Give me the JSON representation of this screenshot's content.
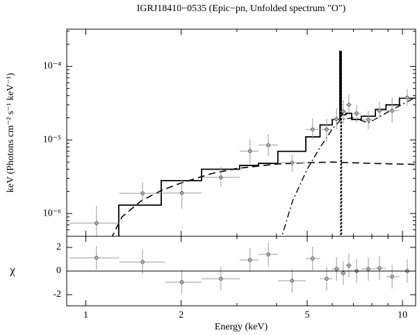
{
  "chart_data": [
    {
      "type": "scatter",
      "title": "IGRJ18410−0535 (Epic−pn, Unfolded spectrum \"O\")",
      "ylabel": "keV (Photons cm⁻² s⁻¹ keV⁻¹)",
      "xscale": "log",
      "yscale": "log",
      "xlim": [
        0.87,
        11
      ],
      "ylim": [
        4.9e-07,
        0.00032
      ],
      "xticks": [
        1,
        2,
        5,
        10
      ],
      "xminorticks": [
        3,
        4,
        6,
        7,
        8,
        9
      ],
      "yticks": [
        {
          "value": 1e-06,
          "label": "10⁻⁶"
        },
        {
          "value": 1e-05,
          "label": "10⁻⁵"
        },
        {
          "value": 0.0001,
          "label": "10⁻⁴"
        }
      ],
      "yminorticks": [
        6e-07,
        7e-07,
        8e-07,
        9e-07,
        2e-06,
        3e-06,
        4e-06,
        5e-06,
        6e-06,
        7e-06,
        8e-06,
        9e-06,
        2e-05,
        3e-05,
        4e-05,
        5e-05,
        6e-05,
        7e-05,
        8e-05,
        9e-05,
        0.0002,
        0.0003
      ],
      "point_color": "#aaaaaa",
      "error_color": "#999999",
      "line_color": "#000000",
      "points": {
        "x": [
          1.08,
          1.51,
          2.01,
          2.67,
          3.3,
          3.77,
          4.48,
          5.2,
          5.76,
          6.19,
          6.5,
          6.77,
          7.16,
          7.8,
          8.46,
          9.27,
          10.35
        ],
        "y": [
          7.4e-07,
          1.88e-06,
          1.9e-06,
          3.1e-06,
          7.06e-06,
          8.5e-06,
          4.9e-06,
          1.39e-05,
          1.39e-05,
          1.92e-05,
          2.44e-05,
          3e-05,
          2.3e-05,
          1.88e-05,
          2.5e-05,
          2.5e-05,
          3.76e-05
        ],
        "x_lo": [
          0.886,
          1.275,
          1.78,
          2.32,
          3.06,
          3.51,
          4.04,
          4.95,
          5.49,
          6.0,
          6.34,
          6.63,
          6.91,
          7.41,
          8.21,
          8.87,
          9.78
        ],
        "x_hi": [
          1.275,
          1.78,
          2.32,
          3.06,
          3.51,
          4.04,
          4.95,
          5.49,
          6.0,
          6.34,
          6.63,
          6.91,
          7.41,
          8.21,
          8.87,
          9.78,
          11.0
        ],
        "y_lo": [
          4e-07,
          1.39e-06,
          1.16e-06,
          2.3e-06,
          4.8e-06,
          6e-06,
          3.7e-06,
          1.02e-05,
          9.4e-06,
          1.39e-05,
          1.65e-05,
          2.2e-05,
          1.72e-05,
          1.39e-05,
          1.96e-05,
          1.7e-05,
          2.9e-05
        ],
        "y_hi": [
          1.27e-06,
          2.66e-06,
          2.9e-06,
          4.3e-06,
          1.02e-05,
          1.2e-05,
          6.3e-06,
          1.96e-05,
          1.96e-05,
          2.7e-05,
          3.5e-05,
          4.2e-05,
          3e-05,
          2.5e-05,
          3.3e-05,
          3.76e-05,
          4.9e-05
        ]
      },
      "models": [
        {
          "style": "step",
          "edges": [
            1.27,
            1.73,
            2.32,
            3.06,
            3.51,
            4.04,
            4.95,
            5.49,
            6.0,
            6.34,
            6.4,
            6.45,
            6.63,
            6.91,
            7.41,
            8.21,
            8.87,
            9.78,
            11.0
          ],
          "values": [
            1.3e-06,
            2.8e-06,
            4e-06,
            4.5e-06,
            4.8e-06,
            7e-06,
            1.1e-05,
            1.6e-05,
            1.9e-05,
            0.00016,
            2.3e-05,
            2.2e-05,
            2.3e-05,
            1.9e-05,
            2.1e-05,
            2.6e-05,
            3e-05,
            3.7e-05
          ]
        },
        {
          "style": "dashed",
          "x": [
            1.2,
            1.3,
            1.5,
            1.75,
            2.0,
            2.5,
            3.0,
            4.0,
            5.0,
            6.0,
            8.0,
            11.0
          ],
          "y": [
            4.5e-07,
            9e-07,
            1.5e-06,
            2.1e-06,
            2.6e-06,
            3.5e-06,
            4.1e-06,
            4.7e-06,
            4.9e-06,
            5e-06,
            4.8e-06,
            4.65e-06
          ]
        },
        {
          "style": "dashdot",
          "x": [
            4.1,
            4.5,
            5.0,
            5.5,
            6.0,
            6.4,
            7.0,
            7.8,
            9.0,
            11.0
          ],
          "y": [
            4e-07,
            1.5e-06,
            4e-06,
            8e-06,
            1.4e-05,
            1.9e-05,
            2e-05,
            1.7e-05,
            2.4e-05,
            3.8e-05
          ]
        },
        {
          "style": "dotted",
          "x": [
            6.38,
            6.4,
            6.42
          ],
          "y": [
            1e-07,
            0.00016,
            1e-07
          ]
        }
      ]
    },
    {
      "type": "scatter",
      "ylabel": "χ",
      "xlabel": "Energy (keV)",
      "xscale": "log",
      "xlim": [
        0.87,
        11
      ],
      "ylim": [
        -2.94,
        2.94
      ],
      "xticks": [
        1,
        2,
        5,
        10
      ],
      "xminorticks": [
        3,
        4,
        6,
        7,
        8,
        9
      ],
      "yticks": [
        -2,
        0,
        2
      ],
      "zero_line": true,
      "point_color": "#aaaaaa",
      "error_color": "#999999",
      "points": {
        "x": [
          1.08,
          1.51,
          2.01,
          2.67,
          3.3,
          3.77,
          4.48,
          5.2,
          5.76,
          6.19,
          6.5,
          6.77,
          7.16,
          7.8,
          8.46,
          9.27,
          10.35
        ],
        "y": [
          1.12,
          0.76,
          -0.94,
          -0.65,
          0.94,
          1.41,
          -0.82,
          1.06,
          -0.65,
          0.18,
          -0.18,
          0.47,
          0,
          0.18,
          0.24,
          -0.47,
          0
        ],
        "x_lo": [
          0.886,
          1.275,
          1.78,
          2.32,
          3.06,
          3.51,
          4.04,
          4.95,
          5.49,
          6.0,
          6.34,
          6.63,
          6.91,
          7.41,
          8.21,
          8.87,
          9.78
        ],
        "x_hi": [
          1.275,
          1.78,
          2.32,
          3.06,
          3.51,
          4.04,
          4.95,
          5.49,
          6.0,
          6.34,
          6.63,
          6.91,
          7.41,
          8.21,
          8.87,
          9.78,
          11.0
        ],
        "err": [
          1,
          1,
          1,
          1,
          1,
          1,
          1,
          1,
          1,
          1,
          1,
          1,
          1,
          1,
          1,
          1,
          1
        ]
      }
    }
  ]
}
